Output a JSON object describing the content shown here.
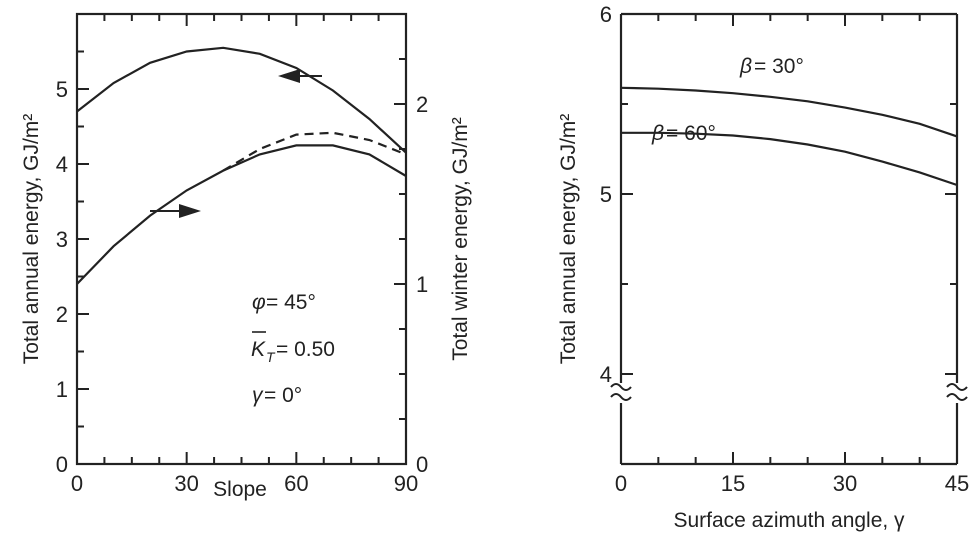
{
  "chart_data": [
    {
      "type": "line",
      "xlabel": "Slope",
      "ylabel": "Total annual energy, GJ/m²",
      "y2label": "Total winter energy, GJ/m²",
      "xlim": [
        0,
        90
      ],
      "ylim": [
        0,
        6
      ],
      "y2lim": [
        0,
        2.5
      ],
      "xticks": [
        0,
        30,
        60,
        90
      ],
      "yticks": [
        0,
        1,
        2,
        3,
        4,
        5
      ],
      "y2ticks": [
        0,
        1,
        2
      ],
      "series": [
        {
          "axis": "left",
          "style": "solid",
          "x": [
            0,
            10,
            20,
            30,
            40,
            50,
            60,
            70,
            80,
            90
          ],
          "values": [
            4.7,
            5.08,
            5.35,
            5.5,
            5.55,
            5.47,
            5.28,
            4.98,
            4.6,
            4.15
          ]
        },
        {
          "axis": "right",
          "style": "solid",
          "x": [
            0,
            10,
            20,
            30,
            40,
            50,
            60,
            70,
            80,
            90
          ],
          "values": [
            1.0,
            1.21,
            1.38,
            1.52,
            1.63,
            1.72,
            1.77,
            1.77,
            1.72,
            1.6
          ]
        },
        {
          "axis": "right",
          "style": "dashed",
          "x": [
            40,
            50,
            60,
            70,
            80,
            90
          ],
          "values": [
            1.63,
            1.75,
            1.83,
            1.84,
            1.8,
            1.72
          ]
        }
      ],
      "annotations": [
        {
          "symbol": "φ",
          "text": " = 45°"
        },
        {
          "symbol": "K",
          "text": " = 0.50",
          "subscript": "T"
        },
        {
          "symbol": "γ",
          "text": " = 0°"
        }
      ]
    },
    {
      "type": "line",
      "xlabel": "Surface azimuth angle, γ",
      "ylabel": "Total annual energy, GJ/m²",
      "xlim": [
        0,
        45
      ],
      "ylim": [
        3.5,
        6
      ],
      "xticks": [
        0,
        15,
        30,
        45
      ],
      "yticks": [
        4,
        5,
        6
      ],
      "axis_break": true,
      "series": [
        {
          "name": "β = 30°",
          "x": [
            0,
            5,
            10,
            15,
            20,
            25,
            30,
            35,
            40,
            45
          ],
          "values": [
            5.59,
            5.585,
            5.575,
            5.56,
            5.54,
            5.515,
            5.48,
            5.44,
            5.39,
            5.32
          ]
        },
        {
          "name": "β = 60°",
          "x": [
            0,
            5,
            10,
            15,
            20,
            25,
            30,
            35,
            40,
            45
          ],
          "values": [
            5.34,
            5.34,
            5.335,
            5.325,
            5.305,
            5.275,
            5.235,
            5.18,
            5.12,
            5.05
          ]
        }
      ],
      "labels": [
        {
          "symbol": "β",
          "text": " = 30°"
        },
        {
          "symbol": "β",
          "text": " = 60°"
        }
      ]
    }
  ]
}
